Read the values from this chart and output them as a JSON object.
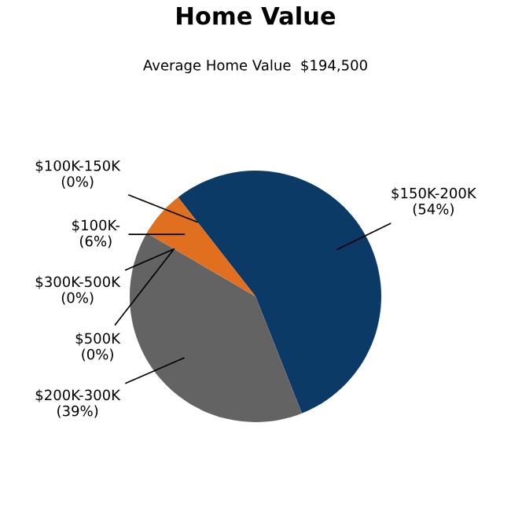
{
  "chart_data": {
    "type": "pie",
    "title": "Home Value",
    "subtitle": "Average Home Value  $194,500",
    "categories": [
      "$150K-200K",
      "$200K-300K",
      "$300K-500K",
      "$500K",
      "$100K-",
      "$100K-150K"
    ],
    "values": [
      54,
      39,
      0,
      0,
      6,
      0
    ],
    "value_labels": [
      "(54%)",
      "(39%)",
      "(0%)",
      "(0%)",
      "(6%)",
      "(0%)"
    ],
    "colors": [
      "#0b3a66",
      "#636363",
      "#8a9a3a",
      "#6a3d8f",
      "#e07020",
      "#c0392b"
    ]
  }
}
